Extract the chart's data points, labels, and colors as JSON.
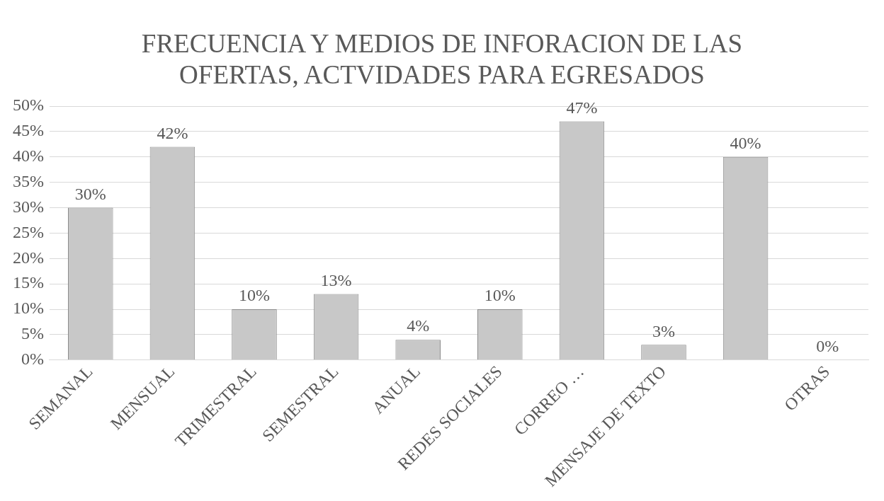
{
  "chart_data": {
    "type": "bar",
    "title": "FRECUENCIA Y MEDIOS DE INFORACION DE LAS OFERTAS, ACTVIDADES PARA EGRESADOS",
    "categories": [
      "SEMANAL",
      "MENSUAL",
      "TRIMESTRAL",
      "SEMESTRAL",
      "ANUAL",
      "REDES SOCIALES",
      "CORREO …",
      "MENSAJE DE TEXTO",
      null,
      "OTRAS"
    ],
    "values": [
      30,
      42,
      10,
      13,
      4,
      10,
      47,
      3,
      40,
      0
    ],
    "value_labels": [
      "30%",
      "42%",
      "10%",
      "13%",
      "4%",
      "10%",
      "47%",
      "3%",
      "40%",
      "0%"
    ],
    "color": "#c8c8c8",
    "ylim": [
      0,
      50
    ],
    "yticks": [
      {
        "value": 0,
        "label": "0%"
      },
      {
        "value": 5,
        "label": "5%"
      },
      {
        "value": 10,
        "label": "10%"
      },
      {
        "value": 15,
        "label": "15%"
      },
      {
        "value": 20,
        "label": "20%"
      },
      {
        "value": 25,
        "label": "25%"
      },
      {
        "value": 30,
        "label": "30%"
      },
      {
        "value": 35,
        "label": "35%"
      },
      {
        "value": 40,
        "label": "40%"
      },
      {
        "value": 45,
        "label": "45%"
      },
      {
        "value": 50,
        "label": "50%"
      }
    ],
    "grid": "y"
  }
}
